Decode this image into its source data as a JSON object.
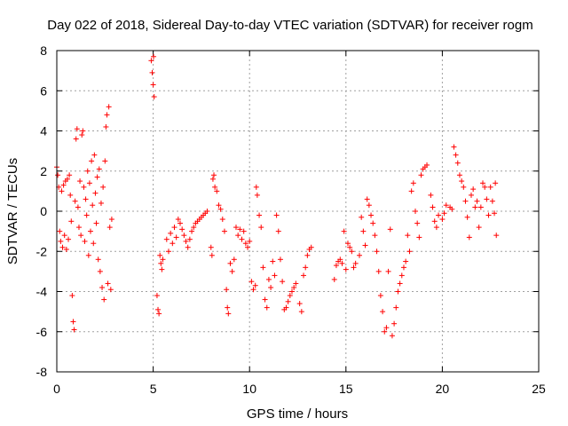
{
  "chart_data": {
    "type": "scatter",
    "title": "Day 022 of 2018, Sidereal Day-to-day VTEC variation (SDTVAR) for receiver rogm",
    "xlabel": "GPS time / hours",
    "ylabel": "SDTVAR / TECUs",
    "xlim": [
      0,
      25
    ],
    "ylim": [
      -8,
      8
    ],
    "x_ticks": [
      0,
      5,
      10,
      15,
      20,
      25
    ],
    "x_tick_labels": [
      "0",
      "5",
      "10",
      "15",
      "20",
      "25"
    ],
    "y_ticks": [
      -8,
      -6,
      -4,
      -2,
      0,
      2,
      4,
      6,
      8
    ],
    "y_tick_labels": [
      "-8",
      "-6",
      "-4",
      "-2",
      "0",
      "2",
      "4",
      "6",
      "8"
    ],
    "grid": true,
    "marker": "plus",
    "series_color": "#ff0000",
    "series": [
      {
        "name": "SDTVAR",
        "points": [
          [
            0.0,
            2.2
          ],
          [
            0.05,
            1.8
          ],
          [
            0.1,
            1.2
          ],
          [
            0.15,
            -1.0
          ],
          [
            0.2,
            -1.5
          ],
          [
            0.25,
            1.0
          ],
          [
            0.3,
            -1.8
          ],
          [
            0.35,
            1.3
          ],
          [
            0.4,
            -1.2
          ],
          [
            0.45,
            1.5
          ],
          [
            0.5,
            -1.9
          ],
          [
            0.55,
            1.6
          ],
          [
            0.6,
            -1.4
          ],
          [
            0.65,
            1.8
          ],
          [
            0.7,
            0.8
          ],
          [
            0.75,
            -0.5
          ],
          [
            0.8,
            -4.2
          ],
          [
            0.85,
            -5.5
          ],
          [
            0.9,
            -5.9
          ],
          [
            0.95,
            0.5
          ],
          [
            1.0,
            3.6
          ],
          [
            1.05,
            4.1
          ],
          [
            1.1,
            0.2
          ],
          [
            1.15,
            -0.8
          ],
          [
            1.2,
            1.5
          ],
          [
            1.25,
            -1.2
          ],
          [
            1.3,
            3.8
          ],
          [
            1.35,
            4.0
          ],
          [
            1.4,
            1.2
          ],
          [
            1.45,
            -1.5
          ],
          [
            1.5,
            0.6
          ],
          [
            1.55,
            -0.2
          ],
          [
            1.6,
            2.0
          ],
          [
            1.65,
            -2.2
          ],
          [
            1.7,
            1.4
          ],
          [
            1.75,
            -1.0
          ],
          [
            1.8,
            2.5
          ],
          [
            1.85,
            0.3
          ],
          [
            1.9,
            -1.6
          ],
          [
            1.95,
            2.8
          ],
          [
            2.0,
            0.9
          ],
          [
            2.05,
            -0.6
          ],
          [
            2.1,
            1.7
          ],
          [
            2.15,
            -2.4
          ],
          [
            2.2,
            2.1
          ],
          [
            2.25,
            -3.0
          ],
          [
            2.3,
            0.4
          ],
          [
            2.35,
            -3.8
          ],
          [
            2.4,
            1.2
          ],
          [
            2.45,
            -4.4
          ],
          [
            2.5,
            2.5
          ],
          [
            2.55,
            4.2
          ],
          [
            2.6,
            4.8
          ],
          [
            2.65,
            -3.6
          ],
          [
            2.7,
            5.2
          ],
          [
            2.75,
            -0.8
          ],
          [
            2.8,
            -3.9
          ],
          [
            2.85,
            -0.4
          ],
          [
            4.9,
            7.5
          ],
          [
            4.95,
            6.9
          ],
          [
            5.0,
            6.3
          ],
          [
            5.02,
            7.7
          ],
          [
            5.05,
            5.7
          ],
          [
            5.2,
            -4.2
          ],
          [
            5.25,
            -4.9
          ],
          [
            5.3,
            -5.1
          ],
          [
            5.35,
            -2.2
          ],
          [
            5.4,
            -2.6
          ],
          [
            5.45,
            -2.9
          ],
          [
            5.5,
            -2.4
          ],
          [
            5.7,
            -1.4
          ],
          [
            5.8,
            -2.0
          ],
          [
            5.9,
            -1.1
          ],
          [
            6.0,
            -1.6
          ],
          [
            6.1,
            -0.8
          ],
          [
            6.2,
            -1.3
          ],
          [
            6.3,
            -0.4
          ],
          [
            6.4,
            -0.6
          ],
          [
            6.5,
            -0.9
          ],
          [
            6.6,
            -1.2
          ],
          [
            6.7,
            -1.5
          ],
          [
            6.8,
            -1.8
          ],
          [
            6.9,
            -1.4
          ],
          [
            7.0,
            -1.0
          ],
          [
            7.1,
            -0.8
          ],
          [
            7.2,
            -0.6
          ],
          [
            7.3,
            -0.5
          ],
          [
            7.4,
            -0.4
          ],
          [
            7.5,
            -0.3
          ],
          [
            7.6,
            -0.2
          ],
          [
            7.7,
            -0.1
          ],
          [
            7.8,
            0.0
          ],
          [
            8.0,
            -1.8
          ],
          [
            8.05,
            -2.2
          ],
          [
            8.1,
            1.6
          ],
          [
            8.15,
            1.8
          ],
          [
            8.2,
            1.2
          ],
          [
            8.3,
            1.0
          ],
          [
            8.4,
            0.3
          ],
          [
            8.5,
            0.1
          ],
          [
            8.6,
            -0.4
          ],
          [
            8.7,
            -1.0
          ],
          [
            8.8,
            -3.9
          ],
          [
            8.85,
            -4.8
          ],
          [
            8.9,
            -5.1
          ],
          [
            9.0,
            -2.6
          ],
          [
            9.1,
            -3.0
          ],
          [
            9.2,
            -2.4
          ],
          [
            9.3,
            -0.8
          ],
          [
            9.4,
            -1.2
          ],
          [
            9.5,
            -0.9
          ],
          [
            9.6,
            -1.4
          ],
          [
            9.7,
            -1.0
          ],
          [
            9.8,
            -1.6
          ],
          [
            9.9,
            -1.8
          ],
          [
            10.0,
            -1.5
          ],
          [
            10.1,
            -3.5
          ],
          [
            10.2,
            -3.9
          ],
          [
            10.3,
            -3.7
          ],
          [
            10.35,
            1.2
          ],
          [
            10.4,
            0.8
          ],
          [
            10.5,
            -0.2
          ],
          [
            10.6,
            -0.8
          ],
          [
            10.7,
            -2.8
          ],
          [
            10.8,
            -4.4
          ],
          [
            10.9,
            -4.8
          ],
          [
            11.0,
            -3.4
          ],
          [
            11.1,
            -3.8
          ],
          [
            11.2,
            -2.5
          ],
          [
            11.3,
            -3.2
          ],
          [
            11.4,
            -0.2
          ],
          [
            11.5,
            -1.0
          ],
          [
            11.6,
            -2.4
          ],
          [
            11.7,
            -3.5
          ],
          [
            11.8,
            -4.9
          ],
          [
            11.9,
            -4.8
          ],
          [
            12.0,
            -4.5
          ],
          [
            12.1,
            -4.2
          ],
          [
            12.2,
            -4.0
          ],
          [
            12.3,
            -3.8
          ],
          [
            12.4,
            -3.6
          ],
          [
            12.6,
            -4.6
          ],
          [
            12.7,
            -5.0
          ],
          [
            12.8,
            -3.2
          ],
          [
            12.9,
            -2.8
          ],
          [
            13.0,
            -2.2
          ],
          [
            13.1,
            -1.9
          ],
          [
            13.2,
            -1.8
          ],
          [
            14.4,
            -3.4
          ],
          [
            14.5,
            -2.7
          ],
          [
            14.6,
            -2.5
          ],
          [
            14.7,
            -2.4
          ],
          [
            14.8,
            -2.6
          ],
          [
            14.9,
            -1.0
          ],
          [
            15.0,
            -2.9
          ],
          [
            15.1,
            -1.6
          ],
          [
            15.2,
            -1.8
          ],
          [
            15.3,
            -2.0
          ],
          [
            15.4,
            -2.8
          ],
          [
            15.5,
            -2.6
          ],
          [
            15.7,
            -2.2
          ],
          [
            15.8,
            -0.3
          ],
          [
            15.9,
            -1.0
          ],
          [
            16.0,
            -1.7
          ],
          [
            16.1,
            0.6
          ],
          [
            16.2,
            0.3
          ],
          [
            16.3,
            -0.2
          ],
          [
            16.4,
            -0.6
          ],
          [
            16.5,
            -1.2
          ],
          [
            16.6,
            -2.0
          ],
          [
            16.7,
            -3.0
          ],
          [
            16.8,
            -4.2
          ],
          [
            16.9,
            -5.0
          ],
          [
            17.0,
            -6.0
          ],
          [
            17.1,
            -5.8
          ],
          [
            17.2,
            -3.0
          ],
          [
            17.3,
            -0.9
          ],
          [
            17.4,
            -6.2
          ],
          [
            17.5,
            -5.6
          ],
          [
            17.6,
            -4.8
          ],
          [
            17.7,
            -4.0
          ],
          [
            17.8,
            -3.6
          ],
          [
            17.9,
            -3.2
          ],
          [
            18.0,
            -2.8
          ],
          [
            18.1,
            -2.5
          ],
          [
            18.2,
            -1.2
          ],
          [
            18.3,
            -2.0
          ],
          [
            18.4,
            1.0
          ],
          [
            18.5,
            1.4
          ],
          [
            18.6,
            0.0
          ],
          [
            18.7,
            -0.6
          ],
          [
            18.8,
            -1.3
          ],
          [
            18.9,
            1.8
          ],
          [
            19.0,
            2.1
          ],
          [
            19.1,
            2.2
          ],
          [
            19.2,
            2.3
          ],
          [
            19.4,
            0.8
          ],
          [
            19.5,
            0.2
          ],
          [
            19.6,
            -0.5
          ],
          [
            19.7,
            -0.8
          ],
          [
            19.8,
            -0.2
          ],
          [
            20.0,
            -0.4
          ],
          [
            20.1,
            -0.1
          ],
          [
            20.2,
            0.3
          ],
          [
            20.4,
            0.2
          ],
          [
            20.5,
            0.1
          ],
          [
            20.6,
            3.2
          ],
          [
            20.7,
            2.8
          ],
          [
            20.8,
            2.4
          ],
          [
            20.9,
            1.8
          ],
          [
            21.0,
            1.5
          ],
          [
            21.1,
            1.2
          ],
          [
            21.2,
            0.5
          ],
          [
            21.3,
            -0.3
          ],
          [
            21.4,
            -1.3
          ],
          [
            21.5,
            0.8
          ],
          [
            21.6,
            1.1
          ],
          [
            21.7,
            0.2
          ],
          [
            21.8,
            0.5
          ],
          [
            21.9,
            -0.8
          ],
          [
            22.0,
            0.2
          ],
          [
            22.1,
            1.4
          ],
          [
            22.2,
            1.2
          ],
          [
            22.3,
            0.6
          ],
          [
            22.4,
            -0.2
          ],
          [
            22.5,
            1.2
          ],
          [
            22.6,
            0.5
          ],
          [
            22.7,
            -0.1
          ],
          [
            22.75,
            1.4
          ],
          [
            22.8,
            -1.2
          ]
        ]
      }
    ]
  }
}
